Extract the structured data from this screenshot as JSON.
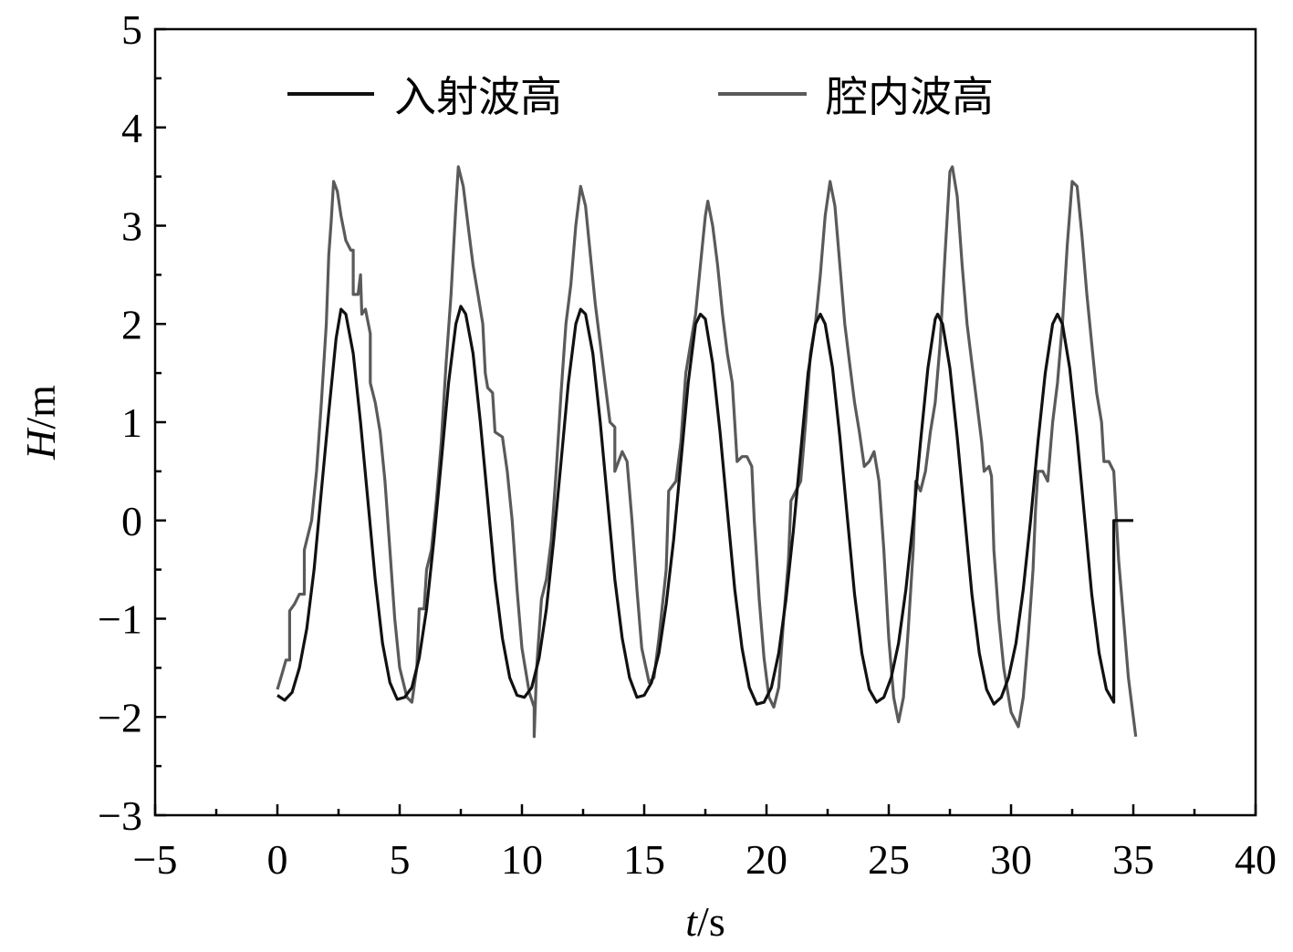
{
  "chart_data": {
    "type": "line",
    "xlabel": {
      "var": "t",
      "unit": "/s"
    },
    "ylabel": {
      "var": "H",
      "unit": "/m"
    },
    "xlim": [
      -5,
      40
    ],
    "ylim": [
      -3,
      5
    ],
    "x_ticks": [
      -5,
      0,
      5,
      10,
      15,
      20,
      25,
      30,
      35,
      40
    ],
    "y_ticks": [
      -3,
      -2,
      -1,
      0,
      1,
      2,
      3,
      4,
      5
    ],
    "x_minor_step": 2.5,
    "y_minor_step": 0.5,
    "grid": false,
    "legend": {
      "placement": "top",
      "orientation": "horizontal"
    },
    "series": [
      {
        "name": "入射波高",
        "color": "#111111",
        "points": [
          [
            0.0,
            -1.78
          ],
          [
            0.3,
            -1.83
          ],
          [
            0.6,
            -1.75
          ],
          [
            0.9,
            -1.5
          ],
          [
            1.2,
            -1.1
          ],
          [
            1.5,
            -0.5
          ],
          [
            1.8,
            0.3
          ],
          [
            2.1,
            1.1
          ],
          [
            2.4,
            1.85
          ],
          [
            2.6,
            2.15
          ],
          [
            2.8,
            2.1
          ],
          [
            3.1,
            1.7
          ],
          [
            3.4,
            1.0
          ],
          [
            3.7,
            0.2
          ],
          [
            4.0,
            -0.6
          ],
          [
            4.3,
            -1.25
          ],
          [
            4.6,
            -1.65
          ],
          [
            4.9,
            -1.82
          ],
          [
            5.2,
            -1.8
          ],
          [
            5.5,
            -1.7
          ],
          [
            5.8,
            -1.4
          ],
          [
            6.1,
            -0.9
          ],
          [
            6.4,
            -0.2
          ],
          [
            6.7,
            0.6
          ],
          [
            7.0,
            1.4
          ],
          [
            7.3,
            2.0
          ],
          [
            7.5,
            2.18
          ],
          [
            7.7,
            2.1
          ],
          [
            8.0,
            1.7
          ],
          [
            8.3,
            1.0
          ],
          [
            8.6,
            0.2
          ],
          [
            8.9,
            -0.6
          ],
          [
            9.2,
            -1.2
          ],
          [
            9.5,
            -1.6
          ],
          [
            9.8,
            -1.78
          ],
          [
            10.1,
            -1.8
          ],
          [
            10.4,
            -1.7
          ],
          [
            10.7,
            -1.4
          ],
          [
            11.0,
            -0.9
          ],
          [
            11.3,
            -0.2
          ],
          [
            11.6,
            0.6
          ],
          [
            11.9,
            1.4
          ],
          [
            12.2,
            2.0
          ],
          [
            12.4,
            2.15
          ],
          [
            12.6,
            2.1
          ],
          [
            12.9,
            1.7
          ],
          [
            13.2,
            1.0
          ],
          [
            13.5,
            0.2
          ],
          [
            13.8,
            -0.6
          ],
          [
            14.1,
            -1.2
          ],
          [
            14.4,
            -1.6
          ],
          [
            14.7,
            -1.8
          ],
          [
            15.0,
            -1.78
          ],
          [
            15.3,
            -1.65
          ],
          [
            15.6,
            -1.35
          ],
          [
            15.9,
            -0.85
          ],
          [
            16.2,
            -0.2
          ],
          [
            16.5,
            0.6
          ],
          [
            16.8,
            1.4
          ],
          [
            17.1,
            2.0
          ],
          [
            17.3,
            2.1
          ],
          [
            17.5,
            2.05
          ],
          [
            17.8,
            1.6
          ],
          [
            18.1,
            0.9
          ],
          [
            18.4,
            0.1
          ],
          [
            18.7,
            -0.7
          ],
          [
            19.0,
            -1.3
          ],
          [
            19.3,
            -1.7
          ],
          [
            19.6,
            -1.87
          ],
          [
            19.9,
            -1.85
          ],
          [
            20.2,
            -1.7
          ],
          [
            20.5,
            -1.35
          ],
          [
            20.8,
            -0.8
          ],
          [
            21.1,
            -0.1
          ],
          [
            21.4,
            0.7
          ],
          [
            21.7,
            1.5
          ],
          [
            22.0,
            2.0
          ],
          [
            22.2,
            2.1
          ],
          [
            22.4,
            2.0
          ],
          [
            22.7,
            1.55
          ],
          [
            23.0,
            0.85
          ],
          [
            23.3,
            0.05
          ],
          [
            23.6,
            -0.75
          ],
          [
            23.9,
            -1.35
          ],
          [
            24.2,
            -1.72
          ],
          [
            24.5,
            -1.85
          ],
          [
            24.8,
            -1.8
          ],
          [
            25.1,
            -1.6
          ],
          [
            25.4,
            -1.25
          ],
          [
            25.7,
            -0.7
          ],
          [
            26.0,
            0.0
          ],
          [
            26.3,
            0.8
          ],
          [
            26.6,
            1.55
          ],
          [
            26.9,
            2.05
          ],
          [
            27.0,
            2.1
          ],
          [
            27.2,
            2.0
          ],
          [
            27.5,
            1.55
          ],
          [
            27.8,
            0.85
          ],
          [
            28.1,
            0.05
          ],
          [
            28.4,
            -0.75
          ],
          [
            28.7,
            -1.35
          ],
          [
            29.0,
            -1.72
          ],
          [
            29.3,
            -1.87
          ],
          [
            29.6,
            -1.8
          ],
          [
            29.9,
            -1.6
          ],
          [
            30.2,
            -1.25
          ],
          [
            30.5,
            -0.7
          ],
          [
            30.8,
            0.0
          ],
          [
            31.1,
            0.8
          ],
          [
            31.4,
            1.5
          ],
          [
            31.7,
            2.0
          ],
          [
            31.9,
            2.1
          ],
          [
            32.1,
            2.0
          ],
          [
            32.4,
            1.55
          ],
          [
            32.7,
            0.85
          ],
          [
            33.0,
            0.05
          ],
          [
            33.3,
            -0.75
          ],
          [
            33.6,
            -1.35
          ],
          [
            33.9,
            -1.72
          ],
          [
            34.2,
            -1.85
          ],
          [
            34.2,
            0.0
          ],
          [
            35.0,
            0.0
          ]
        ]
      },
      {
        "name": "腔内波高",
        "color": "#5a5a5a",
        "points": [
          [
            0.0,
            -1.72
          ],
          [
            0.2,
            -1.55
          ],
          [
            0.35,
            -1.42
          ],
          [
            0.5,
            -1.42
          ],
          [
            0.5,
            -0.92
          ],
          [
            0.7,
            -0.85
          ],
          [
            0.9,
            -0.75
          ],
          [
            1.1,
            -0.75
          ],
          [
            1.1,
            -0.3
          ],
          [
            1.4,
            0.0
          ],
          [
            1.6,
            0.5
          ],
          [
            1.8,
            1.2
          ],
          [
            2.0,
            2.0
          ],
          [
            2.1,
            2.7
          ],
          [
            2.2,
            3.05
          ],
          [
            2.3,
            3.45
          ],
          [
            2.45,
            3.35
          ],
          [
            2.6,
            3.1
          ],
          [
            2.8,
            2.85
          ],
          [
            3.0,
            2.75
          ],
          [
            3.1,
            2.75
          ],
          [
            3.1,
            2.3
          ],
          [
            3.3,
            2.3
          ],
          [
            3.4,
            2.5
          ],
          [
            3.45,
            2.1
          ],
          [
            3.6,
            2.15
          ],
          [
            3.8,
            1.9
          ],
          [
            3.8,
            1.4
          ],
          [
            4.0,
            1.2
          ],
          [
            4.2,
            0.9
          ],
          [
            4.4,
            0.4
          ],
          [
            4.6,
            -0.3
          ],
          [
            4.8,
            -1.0
          ],
          [
            5.0,
            -1.5
          ],
          [
            5.3,
            -1.8
          ],
          [
            5.5,
            -1.85
          ],
          [
            5.7,
            -1.5
          ],
          [
            5.8,
            -0.9
          ],
          [
            6.0,
            -0.9
          ],
          [
            6.1,
            -0.5
          ],
          [
            6.3,
            -0.3
          ],
          [
            6.5,
            0.2
          ],
          [
            6.7,
            0.8
          ],
          [
            6.9,
            1.6
          ],
          [
            7.1,
            2.3
          ],
          [
            7.3,
            3.2
          ],
          [
            7.4,
            3.6
          ],
          [
            7.6,
            3.4
          ],
          [
            7.8,
            3.0
          ],
          [
            8.0,
            2.6
          ],
          [
            8.2,
            2.3
          ],
          [
            8.4,
            2.0
          ],
          [
            8.5,
            1.5
          ],
          [
            8.6,
            1.35
          ],
          [
            8.8,
            1.3
          ],
          [
            8.9,
            0.9
          ],
          [
            9.2,
            0.85
          ],
          [
            9.4,
            0.5
          ],
          [
            9.6,
            0.0
          ],
          [
            9.8,
            -0.7
          ],
          [
            10.0,
            -1.3
          ],
          [
            10.3,
            -1.75
          ],
          [
            10.5,
            -1.9
          ],
          [
            10.5,
            -2.2
          ],
          [
            10.6,
            -1.5
          ],
          [
            10.8,
            -0.8
          ],
          [
            11.0,
            -0.6
          ],
          [
            11.2,
            -0.2
          ],
          [
            11.4,
            0.5
          ],
          [
            11.6,
            1.3
          ],
          [
            11.8,
            2.0
          ],
          [
            12.0,
            2.4
          ],
          [
            12.2,
            3.0
          ],
          [
            12.4,
            3.4
          ],
          [
            12.6,
            3.2
          ],
          [
            12.8,
            2.7
          ],
          [
            13.0,
            2.2
          ],
          [
            13.2,
            1.8
          ],
          [
            13.4,
            1.4
          ],
          [
            13.6,
            1.0
          ],
          [
            13.8,
            0.95
          ],
          [
            13.8,
            0.5
          ],
          [
            14.1,
            0.7
          ],
          [
            14.3,
            0.6
          ],
          [
            14.5,
            0.0
          ],
          [
            14.7,
            -0.7
          ],
          [
            14.9,
            -1.3
          ],
          [
            15.2,
            -1.65
          ],
          [
            15.4,
            -1.6
          ],
          [
            15.6,
            -1.2
          ],
          [
            15.9,
            -0.5
          ],
          [
            16.0,
            0.3
          ],
          [
            16.3,
            0.4
          ],
          [
            16.5,
            0.8
          ],
          [
            16.7,
            1.5
          ],
          [
            16.9,
            1.8
          ],
          [
            17.1,
            2.1
          ],
          [
            17.3,
            2.6
          ],
          [
            17.5,
            3.1
          ],
          [
            17.6,
            3.25
          ],
          [
            17.8,
            3.0
          ],
          [
            18.0,
            2.6
          ],
          [
            18.2,
            2.1
          ],
          [
            18.4,
            1.7
          ],
          [
            18.6,
            1.4
          ],
          [
            18.7,
            1.0
          ],
          [
            18.8,
            0.6
          ],
          [
            19.0,
            0.65
          ],
          [
            19.2,
            0.65
          ],
          [
            19.4,
            0.55
          ],
          [
            19.5,
            0.0
          ],
          [
            19.7,
            -0.8
          ],
          [
            19.9,
            -1.4
          ],
          [
            20.1,
            -1.8
          ],
          [
            20.3,
            -1.9
          ],
          [
            20.5,
            -1.7
          ],
          [
            20.7,
            -1.0
          ],
          [
            20.9,
            -0.4
          ],
          [
            21.0,
            0.2
          ],
          [
            21.2,
            0.3
          ],
          [
            21.4,
            0.4
          ],
          [
            21.6,
            1.0
          ],
          [
            21.8,
            1.7
          ],
          [
            22.0,
            2.0
          ],
          [
            22.2,
            2.5
          ],
          [
            22.4,
            3.1
          ],
          [
            22.6,
            3.45
          ],
          [
            22.8,
            3.2
          ],
          [
            23.0,
            2.6
          ],
          [
            23.2,
            2.0
          ],
          [
            23.4,
            1.6
          ],
          [
            23.6,
            1.2
          ],
          [
            23.8,
            0.9
          ],
          [
            24.0,
            0.55
          ],
          [
            24.2,
            0.6
          ],
          [
            24.4,
            0.7
          ],
          [
            24.6,
            0.4
          ],
          [
            24.8,
            -0.3
          ],
          [
            25.0,
            -1.2
          ],
          [
            25.2,
            -1.8
          ],
          [
            25.4,
            -2.05
          ],
          [
            25.6,
            -1.8
          ],
          [
            25.8,
            -1.1
          ],
          [
            26.0,
            -0.3
          ],
          [
            26.1,
            0.4
          ],
          [
            26.3,
            0.3
          ],
          [
            26.5,
            0.5
          ],
          [
            26.7,
            0.9
          ],
          [
            26.9,
            1.2
          ],
          [
            27.1,
            1.8
          ],
          [
            27.3,
            2.7
          ],
          [
            27.5,
            3.55
          ],
          [
            27.6,
            3.6
          ],
          [
            27.8,
            3.3
          ],
          [
            28.0,
            2.6
          ],
          [
            28.2,
            2.0
          ],
          [
            28.4,
            1.6
          ],
          [
            28.6,
            1.2
          ],
          [
            28.8,
            0.8
          ],
          [
            28.9,
            0.5
          ],
          [
            29.1,
            0.55
          ],
          [
            29.2,
            0.45
          ],
          [
            29.3,
            -0.3
          ],
          [
            29.5,
            -1.0
          ],
          [
            29.7,
            -1.5
          ],
          [
            30.0,
            -1.95
          ],
          [
            30.3,
            -2.1
          ],
          [
            30.5,
            -1.8
          ],
          [
            30.7,
            -1.2
          ],
          [
            30.9,
            -0.5
          ],
          [
            31.0,
            0.1
          ],
          [
            31.1,
            0.5
          ],
          [
            31.3,
            0.5
          ],
          [
            31.5,
            0.4
          ],
          [
            31.7,
            1.0
          ],
          [
            31.9,
            1.4
          ],
          [
            32.1,
            2.0
          ],
          [
            32.3,
            2.8
          ],
          [
            32.5,
            3.45
          ],
          [
            32.7,
            3.4
          ],
          [
            32.9,
            2.9
          ],
          [
            33.1,
            2.3
          ],
          [
            33.3,
            1.8
          ],
          [
            33.5,
            1.3
          ],
          [
            33.7,
            1.0
          ],
          [
            33.8,
            0.6
          ],
          [
            34.0,
            0.6
          ],
          [
            34.2,
            0.5
          ],
          [
            34.4,
            -0.4
          ],
          [
            34.6,
            -1.0
          ],
          [
            34.8,
            -1.6
          ],
          [
            35.1,
            -2.2
          ]
        ]
      }
    ]
  }
}
